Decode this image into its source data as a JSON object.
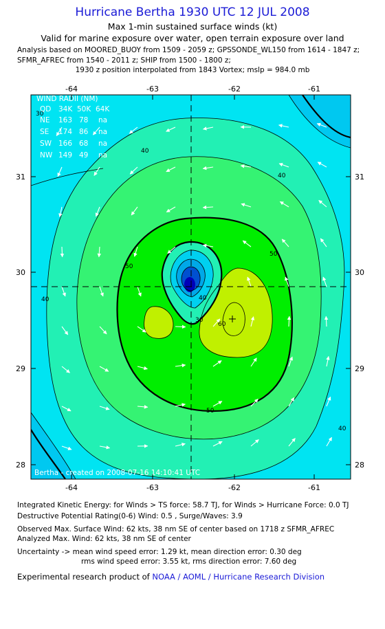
{
  "header": {
    "title": "Hurricane Bertha 1930 UTC 12 JUL 2008",
    "subtitle": "Max 1-min sustained surface winds (kt)",
    "validity": "Valid for marine exposure over water, open terrain exposure over land",
    "analysis_line1": "Analysis based on  MOORED_BUOY from 1509 - 2059 z;  GPSSONDE_WL150 from 1614 - 1847 z;",
    "analysis_line2": "SFMR_AFREC from 1540 - 2011 z;  SHIP from 1500 - 1800 z;",
    "analysis_line3": "1930 z position interpolated from 1843 Vortex; mslp = 984.0 mb"
  },
  "map": {
    "x_ticks": [
      "-64",
      "-63",
      "-62",
      "-61"
    ],
    "y_ticks": [
      "31",
      "30",
      "29",
      "28"
    ],
    "center": {
      "lon": -62.55,
      "lat": 29.86
    },
    "contour_labels": [
      "30",
      "40",
      "40",
      "40",
      "40",
      "50",
      "50",
      "50",
      "40",
      "30",
      "60"
    ],
    "credit": "Bertha  - created on 2008-07-16 14:10:41 UTC",
    "colors": {
      "lt30": "#00e4f2",
      "c30_40": "#22f0b4",
      "c40_50": "#35f373",
      "c50_60": "#00ee00",
      "gt60": "#c0f000",
      "eye": "#0000b8"
    }
  },
  "wind_radii": {
    "title": "WIND RADII (NM)",
    "header": [
      "QD",
      "34K",
      "50K",
      "64K"
    ],
    "rows": [
      [
        "NE",
        "163",
        "78",
        "na"
      ],
      [
        "SE",
        "174",
        "86",
        "na"
      ],
      [
        "SW",
        "166",
        "68",
        "na"
      ],
      [
        "NW",
        "149",
        "49",
        "na"
      ]
    ]
  },
  "footer": {
    "ike": "Integrated Kinetic Energy:  for Winds > TS force: 58.7 TJ,  for Winds > Hurricane Force: 0.0 TJ",
    "dpr": "Destructive Potential Rating(0-6)   Wind: 0.5 , Surge/Waves: 3.9",
    "observed": "Observed Max. Surface Wind: 62 kts, 38 nm SE of center based on 1718 z SFMR_AFREC",
    "analyzed": "Analyzed Max. Wind: 62 kts, 38 nm SE of center",
    "uncertainty1": "Uncertainty -> mean wind speed error: 1.29 kt,   mean direction error: 0.30 deg",
    "uncertainty2": "rms wind speed error: 3.55 kt,   rms direction error: 7.60 deg",
    "product_prefix": "Experimental research product of ",
    "product_org": "NOAA / AOML / Hurricane Research Division"
  }
}
